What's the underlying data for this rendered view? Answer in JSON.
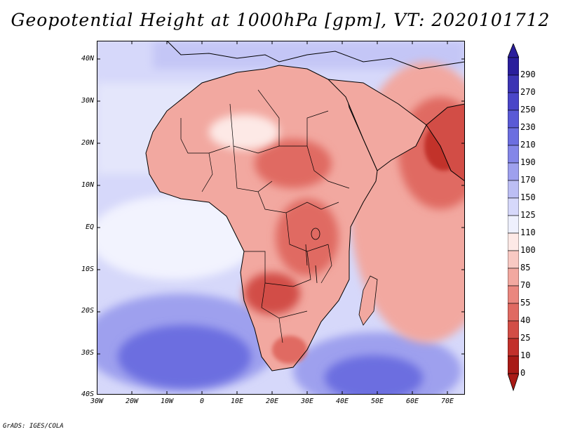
{
  "title": "Geopotential Height at 1000hPa [gpm], VT: 2020101712",
  "credit": "GrADS: IGES/COLA",
  "lat_ticks": [
    "40N",
    "30N",
    "20N",
    "10N",
    "EQ",
    "10S",
    "20S",
    "30S",
    "40S"
  ],
  "lon_ticks": [
    "30W",
    "20W",
    "10W",
    "0",
    "10E",
    "20E",
    "30E",
    "40E",
    "50E",
    "60E",
    "70E"
  ],
  "colorbar": {
    "labels": [
      "290",
      "270",
      "250",
      "230",
      "210",
      "190",
      "170",
      "150",
      "125",
      "110",
      "100",
      "85",
      "70",
      "55",
      "40",
      "25",
      "10",
      "0"
    ],
    "colors": [
      "#2a1e9c",
      "#3c34b4",
      "#4a46c8",
      "#5a5ad6",
      "#6c6ee0",
      "#8486e8",
      "#9ea0ee",
      "#bcbef4",
      "#d6d8fa",
      "#eef0fd",
      "#fde9e6",
      "#f8c9c3",
      "#f2a8a0",
      "#ea877f",
      "#e06a62",
      "#d24d46",
      "#c2302b",
      "#a81a16"
    ]
  },
  "legend_colors": {
    "ocean_low": "#d6d8fa",
    "ocean_deep": "#6c6ee0",
    "land_high": "#e06a62",
    "boundary": "#000000"
  }
}
